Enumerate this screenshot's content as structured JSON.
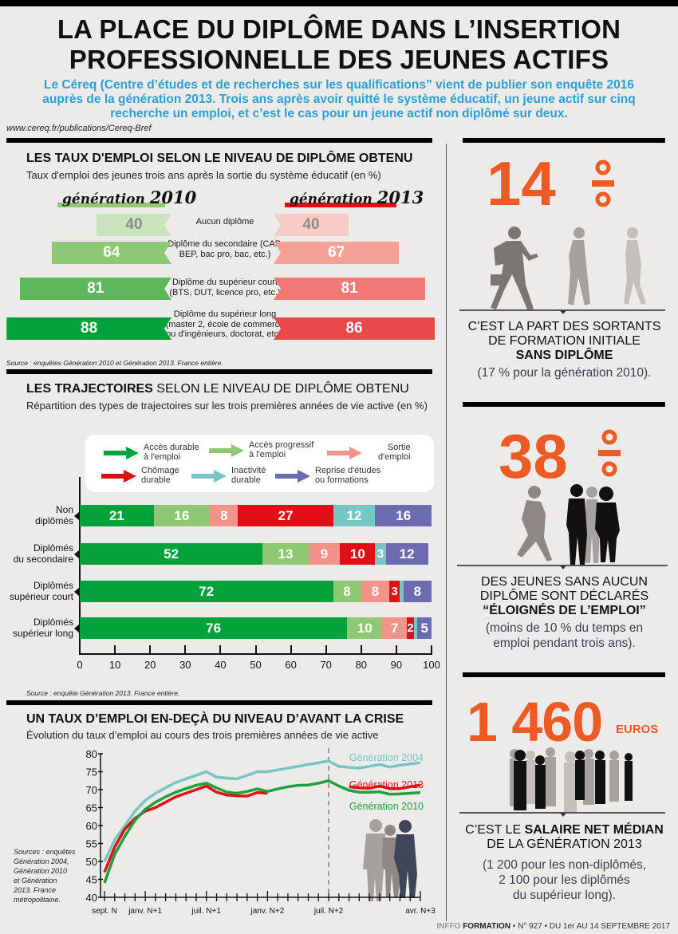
{
  "header": {
    "title_line1": "LA PLACE DU DIPLÔME DANS L’INSERTION",
    "title_line2": "PROFESSIONNELLE DES JEUNES ACTIFS",
    "intro": "Le Céreq (Centre d’études et de recherches sur les qualifications” vient de publier son enquête 2016 auprès de la génération 2013. Trois ans après avoir quitté le système éducatif, un jeune actif sur cinq recherche un emploi, et c’est le cas pour un jeune actif non diplômé sur deux.",
    "url": "www.cereq.fr/publications/Cereq-Bref"
  },
  "colors": {
    "orange": "#ee5a24",
    "blue": "#2a9fd6",
    "green_dark": "#05a23c",
    "green_light": "#8ec872",
    "salmon": "#f2938a",
    "red": "#e00f14",
    "teal": "#76c6c4",
    "purple": "#6c6ab0"
  },
  "chart_data": [
    {
      "type": "bar",
      "title": "LES TAUX D'EMPLOI SELON LE NIVEAU DE DIPLÔME OBTENU",
      "subtitle": "Taux d'emploi des jeunes trois ans après la sortie du système éducatif (en %)",
      "categories": [
        "Aucun diplôme",
        "Diplôme du secondaire (CAP, BEP, bac pro, bac, etc.)",
        "Diplôme du supérieur court (BTS, DUT, licence pro, etc.)",
        "Diplôme du supérieur long (master 2, école de commerce ou d'ingénieurs, doctorat, etc.)"
      ],
      "series": [
        {
          "name": "génération 2010",
          "prefix": "génération",
          "year": "2010",
          "values": [
            40,
            64,
            81,
            88
          ],
          "colors": [
            "#c9e4bd",
            "#8ec872",
            "#5cb85a",
            "#05a23c"
          ]
        },
        {
          "name": "génération 2013",
          "prefix": "génération",
          "year": "2013",
          "values": [
            40,
            67,
            81,
            86
          ],
          "colors": [
            "#f9cbc5",
            "#f4a097",
            "#f07a73",
            "#e8494b"
          ]
        }
      ],
      "source": "Source : enquêtes Génération 2010 et Génération 2013. France entière."
    },
    {
      "type": "bar",
      "stacked": true,
      "orientation": "horizontal",
      "title_bold": "LES TRAJECTOIRES",
      "title_rest": " SELON LE NIVEAU DE DIPLÔME OBTENU",
      "subtitle": "Répartition des types de trajectoires sur les trois premières années de vie active (en %)",
      "categories": [
        "Non diplômés",
        "Diplômés du secondaire",
        "Diplômés supérieur court",
        "Diplômés supérieur long"
      ],
      "category_lines": [
        [
          "Non",
          "diplômés"
        ],
        [
          "Diplômés",
          "du secondaire"
        ],
        [
          "Diplômés",
          "supérieur court"
        ],
        [
          "Diplômés",
          "supérieur long"
        ]
      ],
      "series": [
        {
          "name": "Accès durable à l'emploi",
          "lines": [
            "Accès durable",
            "à l'emploi"
          ],
          "color": "#05a23c",
          "values": [
            21,
            52,
            72,
            76
          ]
        },
        {
          "name": "Accès progressif à l'emploi",
          "lines": [
            "Accès progressif",
            "à l'emploi"
          ],
          "color": "#8ec872",
          "values": [
            16,
            13,
            8,
            10
          ]
        },
        {
          "name": "Sortie d'emploi",
          "lines": [
            "Sortie",
            "d'emploi"
          ],
          "color": "#f2938a",
          "values": [
            8,
            9,
            8,
            7
          ]
        },
        {
          "name": "Chômage durable",
          "lines": [
            "Chômage",
            "durable"
          ],
          "color": "#e00f14",
          "values": [
            27,
            10,
            3,
            2
          ]
        },
        {
          "name": "Inactivité durable",
          "lines": [
            "Inactivité",
            "durable"
          ],
          "color": "#76c6c4",
          "values": [
            12,
            3,
            1,
            1
          ]
        },
        {
          "name": "Reprise d'études ou formations",
          "lines": [
            "Reprise d'études",
            "ou formations"
          ],
          "color": "#6c6ab0",
          "values": [
            16,
            12,
            8,
            5
          ]
        }
      ],
      "xlim": [
        0,
        100
      ],
      "xticks": [
        "0",
        "10",
        "20",
        "30",
        "40",
        "50",
        "60",
        "70",
        "80",
        "90",
        "100"
      ],
      "source": "Source : enquête Génération 2013. France entière."
    },
    {
      "type": "line",
      "title": "UN TAUX D’EMPLOI EN-DEÇÀ DU NIVEAU D’AVANT LA CRISE",
      "subtitle": "Évolution du taux d’emploi au cours des trois premières années de vie active",
      "ylim": [
        40,
        80
      ],
      "yticks": [
        "40",
        "45",
        "50",
        "55",
        "60",
        "65",
        "70",
        "75",
        "80"
      ],
      "xlim": [
        0,
        31
      ],
      "x_unit": "months since sept. N",
      "xticks": [
        {
          "month": 0,
          "label": "sept. N"
        },
        {
          "month": 4,
          "label": "janv. N+1"
        },
        {
          "month": 10,
          "label": "juil. N+1"
        },
        {
          "month": 16,
          "label": "janv. N+2"
        },
        {
          "month": 22,
          "label": "juil. N+2"
        },
        {
          "month": 31,
          "label": "avr. N+3"
        }
      ],
      "marker_month": 22,
      "x": [
        0,
        1,
        2,
        3,
        4,
        5,
        6,
        7,
        8,
        9,
        10,
        11,
        12,
        13,
        14,
        15,
        16,
        17,
        18,
        19,
        20,
        21,
        22,
        23,
        24,
        25,
        26,
        27,
        28,
        29,
        30,
        31
      ],
      "series": [
        {
          "name": "Génération 2004",
          "color": "#76c6c4",
          "values": [
            50,
            56,
            60,
            64,
            67,
            69,
            70.5,
            72,
            73,
            74,
            75,
            73.5,
            73.2,
            73,
            74,
            75,
            75,
            75.5,
            76,
            76.5,
            77,
            77.5,
            78,
            76.5,
            76.2,
            76,
            76.5,
            77,
            76.3,
            76.8,
            77.2,
            77.5
          ]
        },
        {
          "name": "Génération 2013",
          "color": "#e00f14",
          "values": [
            47,
            54,
            59,
            62,
            64,
            65,
            66.5,
            68,
            69,
            70,
            71,
            69.3,
            68.5,
            68.3,
            68.2,
            69.2,
            69,
            null,
            null,
            null,
            null,
            null,
            null,
            null,
            70.8,
            70.5,
            70.4,
            71,
            70.3,
            70.3,
            70.8,
            71.3
          ]
        },
        {
          "name": "Génération 2010",
          "color": "#1fa03b",
          "values": [
            44,
            52,
            57,
            61.5,
            64.5,
            66.5,
            68,
            69.3,
            70.3,
            71.2,
            71.8,
            70.5,
            69.3,
            69,
            69.5,
            70.2,
            69.5,
            70.2,
            70.8,
            71.2,
            71.3,
            71.8,
            72.5,
            71,
            69.8,
            69.3,
            69.3,
            69.4,
            68.7,
            68.8,
            69,
            69.2
          ]
        }
      ],
      "source_lines": [
        "Sources : enquêtes",
        "Génération 2004,",
        "Génération 2010",
        "et Génération",
        "2013. France",
        "métropolitaine."
      ]
    }
  ],
  "stats": [
    {
      "value": "14",
      "unit": "%",
      "line1": "C’EST LA PART DES SORTANTS",
      "line2": "DE FORMATION INITIALE",
      "line3_bold": "SANS DIPLÔME",
      "note": "(17 % pour la génération 2010)."
    },
    {
      "value": "38",
      "unit": "%",
      "line1": "DES JEUNES SANS AUCUN",
      "line2": "DIPLÔME SONT DÉCLARÉS",
      "line3_bold": "“ÉLOIGNÉS DE L’EMPLOI”",
      "note_line1": "(moins de 10 % du temps en",
      "note_line2": "emploi pendant trois ans)."
    },
    {
      "value": "1 460",
      "unit": "EUROS",
      "line1_pre": "C’EST LE ",
      "line1_bold": "SALAIRE NET MÉDIAN",
      "line2": "DE LA GÉNÉRATION 2013",
      "note_line1": "(1 200 pour les non-diplômés,",
      "note_line2": "2 100 pour les diplômés",
      "note_line3": "du supérieur long)."
    }
  ],
  "footer": {
    "brand1": "INFFO",
    "brand2": "FORMATION",
    "issue": " • N° 927 • DU 1er AU 14 SEPTEMBRE 2017"
  }
}
